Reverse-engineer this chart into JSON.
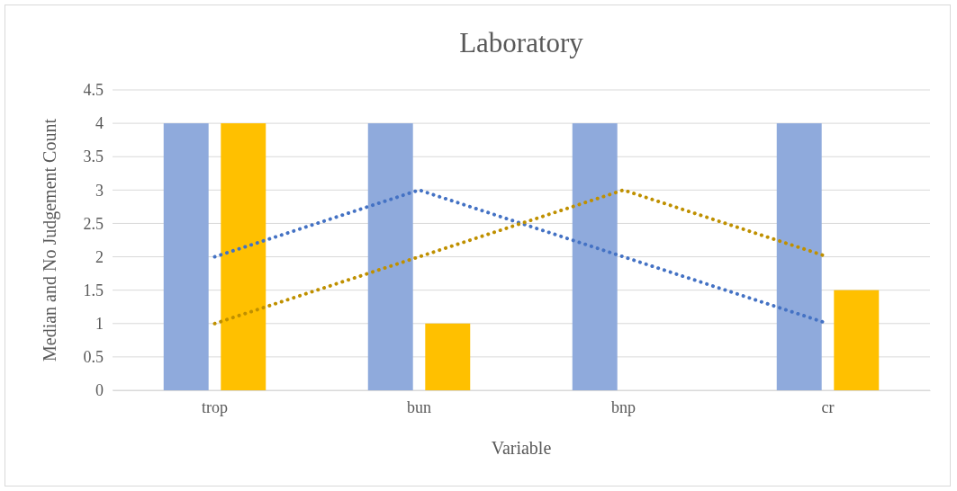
{
  "chart_data": {
    "type": "bar",
    "title": "Laboratory",
    "xlabel": "Variable",
    "ylabel": "Median and No Judgement Count",
    "categories": [
      "trop",
      "bun",
      "bnp",
      "cr"
    ],
    "series": [
      {
        "color": "#8faadc",
        "values": [
          4,
          4,
          4,
          4
        ]
      },
      {
        "color": "#ffc000",
        "values": [
          4,
          1,
          0,
          1.5
        ]
      },
      {
        "type": "line",
        "color": "#4472c4",
        "values": [
          2,
          3,
          2,
          1
        ],
        "line_style": "dotted"
      },
      {
        "type": "line",
        "color": "#bf9000",
        "values": [
          1,
          2,
          3,
          2
        ],
        "line_style": "dotted"
      }
    ],
    "ylim": [
      0,
      4.5
    ],
    "yticks": [
      0,
      0.5,
      1,
      1.5,
      2,
      2.5,
      3,
      3.5,
      4,
      4.5
    ],
    "grid": "y",
    "marker": "none"
  }
}
